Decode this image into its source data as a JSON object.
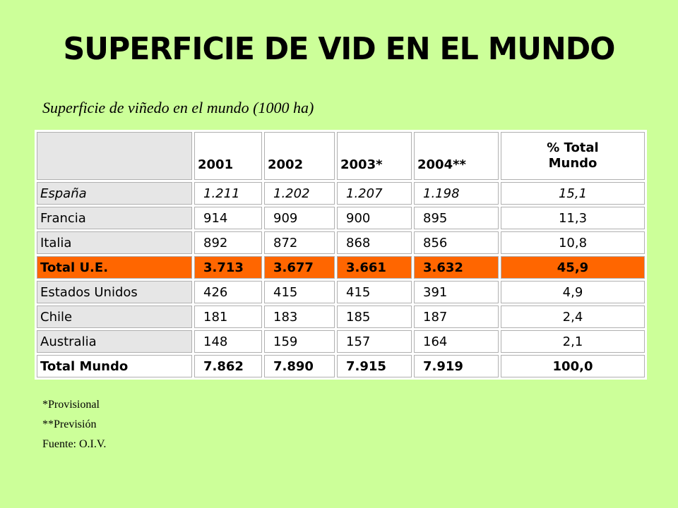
{
  "title": "SUPERFICIE DE VID EN EL MUNDO",
  "subtitle": "Superficie de viñedo en el mundo (1000 ha)",
  "table": {
    "headers": [
      "2001",
      "2002",
      "2003*",
      "2004**"
    ],
    "pct_header_line1": "% Total",
    "pct_header_line2": "Mundo",
    "rows": [
      {
        "name": "España",
        "values": [
          "1.211",
          "1.202",
          "1.207",
          "1.198"
        ],
        "pct": "15,1"
      },
      {
        "name": "Francia",
        "values": [
          "914",
          "909",
          "900",
          "895"
        ],
        "pct": "11,3"
      },
      {
        "name": "Italia",
        "values": [
          "892",
          "872",
          "868",
          "856"
        ],
        "pct": "10,8"
      },
      {
        "name": "Total U.E.",
        "values": [
          "3.713",
          "3.677",
          "3.661",
          "3.632"
        ],
        "pct": "45,9"
      },
      {
        "name": "Estados Unidos",
        "values": [
          "426",
          "415",
          "415",
          "391"
        ],
        "pct": "4,9"
      },
      {
        "name": "Chile",
        "values": [
          "181",
          "183",
          "185",
          "187"
        ],
        "pct": "2,4"
      },
      {
        "name": "Australia",
        "values": [
          "148",
          "159",
          "157",
          "164"
        ],
        "pct": "2,1"
      },
      {
        "name": "Total Mundo",
        "values": [
          "7.862",
          "7.890",
          "7.915",
          "7.919"
        ],
        "pct": "100,0"
      }
    ],
    "colors": {
      "highlight_row": "#ff6600",
      "label_cell": "#e6e6e6"
    }
  },
  "notes": [
    "*Provisional",
    "**Previsión",
    "Fuente: O.I.V."
  ],
  "colors": {
    "background": "#ccff99"
  }
}
